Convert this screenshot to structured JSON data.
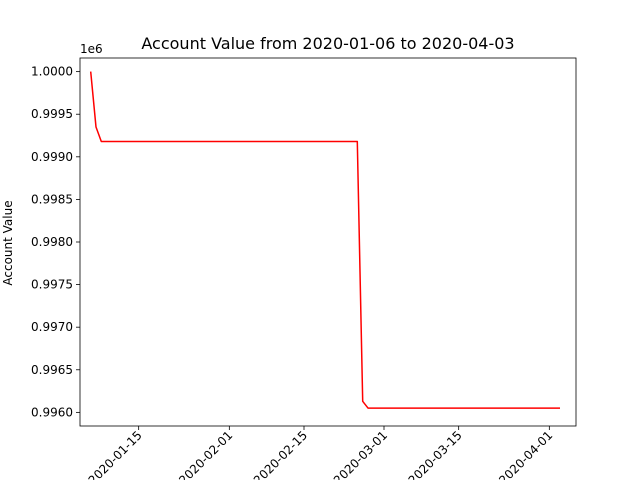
{
  "chart_data": {
    "type": "line",
    "title": "Account Value from 2020-01-06 to 2020-04-03",
    "xlabel": "",
    "ylabel": "Account Value",
    "y_scale_label": "1e6",
    "xlim": [
      "2020-01-04",
      "2020-04-06"
    ],
    "ylim": [
      0.99584,
      1.00016
    ],
    "x_tick_labels": [
      "2020-01-15",
      "2020-02-01",
      "2020-02-15",
      "2020-03-01",
      "2020-03-15",
      "2020-04-01"
    ],
    "x_tick_values": [
      "2020-01-15",
      "2020-02-01",
      "2020-02-15",
      "2020-03-01",
      "2020-03-15",
      "2020-04-01"
    ],
    "y_tick_labels": [
      "0.9960",
      "0.9965",
      "0.9970",
      "0.9975",
      "0.9980",
      "0.9985",
      "0.9990",
      "0.9995",
      "1.0000"
    ],
    "y_tick_values": [
      0.996,
      0.9965,
      0.997,
      0.9975,
      0.998,
      0.9985,
      0.999,
      0.9995,
      1.0
    ],
    "grid": false,
    "series": [
      {
        "color": "#ff0000",
        "x": [
          "2020-01-06",
          "2020-01-07",
          "2020-01-08",
          "2020-02-25",
          "2020-02-26",
          "2020-02-27",
          "2020-04-03"
        ],
        "y": [
          1.0,
          0.99935,
          0.99918,
          0.99918,
          0.99613,
          0.99605,
          0.99605
        ]
      }
    ]
  }
}
